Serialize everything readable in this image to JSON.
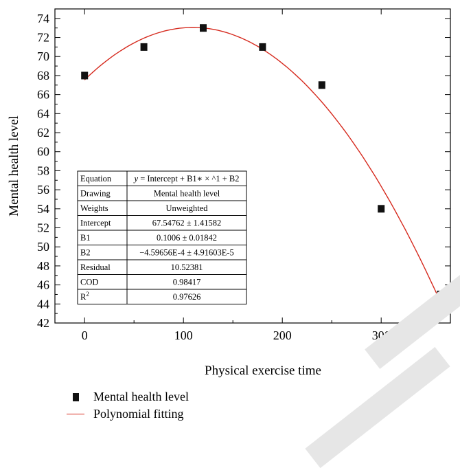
{
  "chart_data": {
    "type": "scatter",
    "xlabel": "Physical exercise time",
    "ylabel": "Mental health level",
    "xlim": [
      -30,
      370
    ],
    "ylim": [
      42,
      75
    ],
    "xticks": [
      0,
      100,
      200,
      300
    ],
    "yticks": [
      42,
      44,
      46,
      48,
      50,
      52,
      54,
      56,
      58,
      60,
      62,
      64,
      66,
      68,
      70,
      72,
      74
    ],
    "series": [
      {
        "name": "Mental health level",
        "kind": "scatter",
        "color": "#111111",
        "x": [
          0,
          60,
          120,
          180,
          240,
          300,
          360
        ],
        "y": [
          68,
          71,
          73,
          71,
          67,
          54,
          45
        ]
      },
      {
        "name": "Polynomial fitting",
        "kind": "line",
        "color": "#d62a1e",
        "intercept": 67.54762,
        "b1": 0.1006,
        "b2": -0.000459656,
        "x_range": [
          0,
          360
        ]
      }
    ],
    "stats_table": [
      {
        "label": "Equation",
        "value": "y = Intercept + B1∗ × ^1 + B2"
      },
      {
        "label": "Drawing",
        "value": "Mental health level"
      },
      {
        "label": "Weights",
        "value": "Unweighted"
      },
      {
        "label": "Intercept",
        "value": "67.54762 ± 1.41582"
      },
      {
        "label": "B1",
        "value": "0.1006 ± 0.01842"
      },
      {
        "label": "B2",
        "value": "−4.59656E-4 ± 4.91603E-5"
      },
      {
        "label": "Residual",
        "value": "10.52381"
      },
      {
        "label": "COD",
        "value": "0.98417"
      },
      {
        "label": "R2",
        "value": "0.97626"
      }
    ]
  },
  "legend": {
    "scatter_label": "Mental health level",
    "line_label": "Polynomial fitting"
  }
}
